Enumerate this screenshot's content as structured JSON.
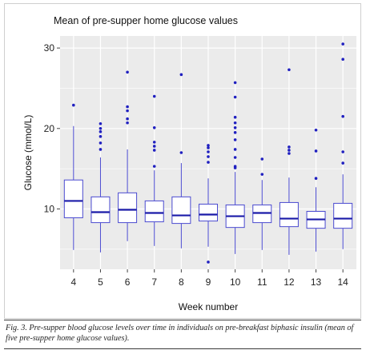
{
  "chart_data": {
    "type": "box",
    "title": "Mean of pre-supper home glucose values",
    "xlabel": "Week number",
    "ylabel": "Glucose (mmol/L)",
    "ylim": [
      2.5,
      31.5
    ],
    "yticks": [
      10,
      20,
      30
    ],
    "grid": true,
    "categories": [
      "4",
      "5",
      "6",
      "7",
      "8",
      "9",
      "10",
      "11",
      "12",
      "13",
      "14"
    ],
    "boxes": [
      {
        "week": "4",
        "whisker_low": 4.9,
        "q1": 8.9,
        "median": 11.0,
        "q3": 13.6,
        "whisker_high": 20.3,
        "outliers": [
          22.9
        ]
      },
      {
        "week": "5",
        "whisker_low": 4.6,
        "q1": 8.3,
        "median": 9.6,
        "q3": 11.5,
        "whisker_high": 16.4,
        "outliers": [
          17.4,
          18.2,
          19.0,
          19.6,
          20.0,
          20.6
        ]
      },
      {
        "week": "6",
        "whisker_low": 6.0,
        "q1": 8.3,
        "median": 9.9,
        "q3": 12.0,
        "whisker_high": 17.4,
        "outliers": [
          20.7,
          21.2,
          22.2,
          22.7,
          27.0
        ]
      },
      {
        "week": "7",
        "whisker_low": 5.4,
        "q1": 8.4,
        "median": 9.5,
        "q3": 11.0,
        "whisker_high": 14.8,
        "outliers": [
          15.3,
          17.3,
          17.8,
          18.3,
          20.1,
          24.0
        ]
      },
      {
        "week": "8",
        "whisker_low": 5.1,
        "q1": 8.2,
        "median": 9.2,
        "q3": 11.5,
        "whisker_high": 15.7,
        "outliers": [
          17.0,
          26.7
        ]
      },
      {
        "week": "9",
        "whisker_low": 5.3,
        "q1": 8.5,
        "median": 9.3,
        "q3": 10.6,
        "whisker_high": 13.8,
        "outliers": [
          3.4,
          15.8,
          16.5,
          17.1,
          17.6,
          17.9
        ]
      },
      {
        "week": "10",
        "whisker_low": 4.4,
        "q1": 7.7,
        "median": 9.1,
        "q3": 10.5,
        "whisker_high": 14.6,
        "outliers": [
          15.1,
          15.3,
          16.4,
          17.4,
          18.6,
          19.5,
          20.1,
          20.7,
          21.4,
          23.9,
          25.7
        ]
      },
      {
        "week": "11",
        "whisker_low": 4.9,
        "q1": 8.3,
        "median": 9.5,
        "q3": 10.5,
        "whisker_high": 13.6,
        "outliers": [
          14.3,
          16.2
        ]
      },
      {
        "week": "12",
        "whisker_low": 4.3,
        "q1": 7.8,
        "median": 8.8,
        "q3": 10.8,
        "whisker_high": 13.9,
        "outliers": [
          16.9,
          17.3,
          17.7,
          27.3
        ]
      },
      {
        "week": "13",
        "whisker_low": 4.7,
        "q1": 7.6,
        "median": 8.7,
        "q3": 9.7,
        "whisker_high": 12.7,
        "outliers": [
          13.8,
          17.2,
          19.8
        ]
      },
      {
        "week": "14",
        "whisker_low": 5.0,
        "q1": 7.6,
        "median": 8.8,
        "q3": 10.7,
        "whisker_high": 14.3,
        "outliers": [
          15.7,
          17.1,
          21.5,
          28.6,
          30.5
        ]
      }
    ],
    "colors": {
      "panel_background": "#ebebeb",
      "gridline": "#ffffff",
      "box_fill": "#ffffff",
      "box_stroke": "#4a4ad0",
      "median": "#1a1aa8",
      "outlier": "#2020c0"
    }
  },
  "caption": "Fig. 3. Pre-supper blood glucose levels over time in individuals on pre-breakfast biphasic insulin (mean of five pre-supper home glucose values)."
}
